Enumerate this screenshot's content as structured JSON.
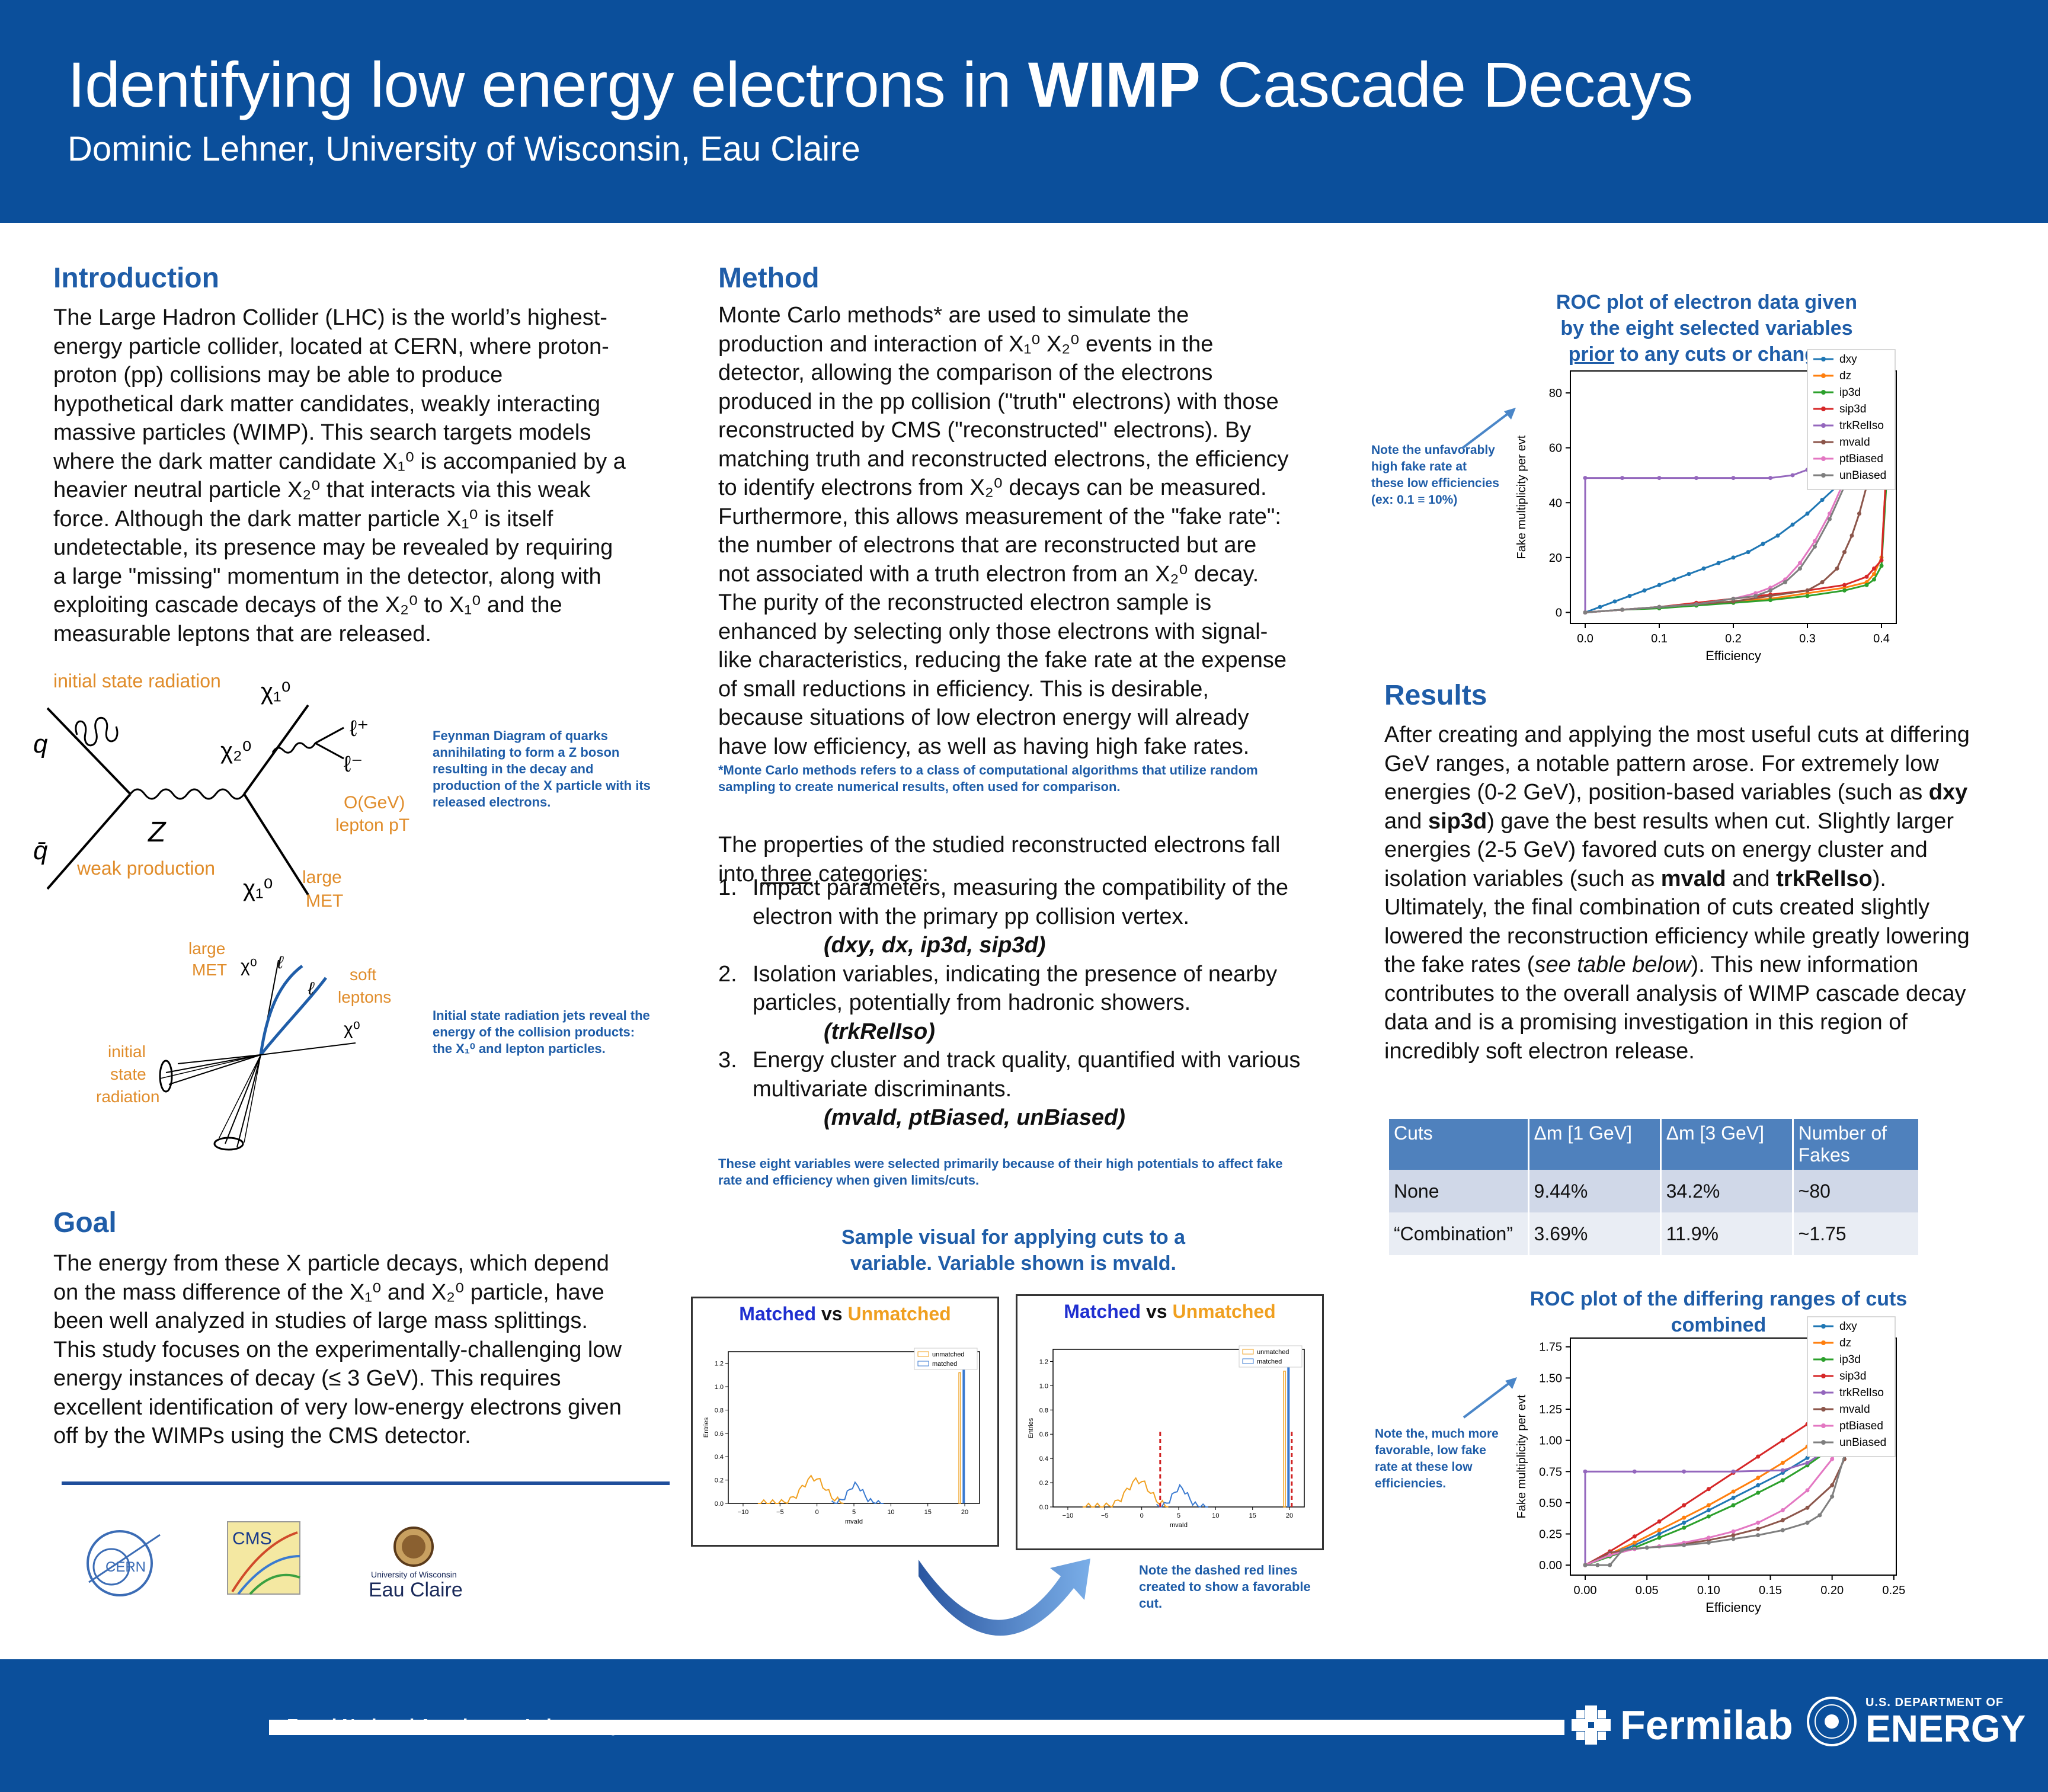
{
  "header": {
    "title_prefix": "Identifying low energy electrons in ",
    "title_bold": "WIMP",
    "title_suffix": " Cascade Decays",
    "author": "Dominic Lehner, University of Wisconsin, Eau Claire",
    "bg_color": "#0b4f9b"
  },
  "introduction": {
    "heading": "Introduction",
    "lines": [
      "The Large Hadron Collider (LHC) is the world’s highest-",
      "energy particle collider, located at CERN, where proton-",
      "proton (pp) collisions may be able to produce",
      "hypothetical dark matter candidates, weakly interacting",
      "massive particles (WIMP). This search targets models",
      "where the dark matter candidate X₁⁰ is accompanied by a",
      "heavier neutral particle X₂⁰ that interacts via this weak",
      "force. Although the dark matter particle X₁⁰ is itself",
      "undetectable, its presence may be revealed by requiring",
      "a large \"missing\" momentum in the detector, along with",
      "exploiting cascade decays of the X₂⁰ to X₁⁰ and the",
      "measurable leptons that are released."
    ]
  },
  "feynman": {
    "isr_label": "initial state radiation",
    "q": "q",
    "qbar": "q̄",
    "chi1_top": "χ₁⁰",
    "chi2": "χ₂⁰",
    "lplus": "ℓ⁺",
    "lminus": "ℓ⁻",
    "z": "Z",
    "ogev": "O(GeV)",
    "lepton_pt": "lepton pT",
    "weak_production": "weak production",
    "chi1_bottom": "χ₁⁰",
    "large_met": "large",
    "met": "MET",
    "caption": "Feynman Diagram of quarks annihilating to form a Z boson resulting in the decay and production of the X particle with its released electrons."
  },
  "isr_diagram": {
    "large": "large",
    "met": "MET",
    "chi0_a": "χ⁰",
    "ell_a": "ℓ",
    "ell_b": "ℓ",
    "soft": "soft",
    "leptons": "leptons",
    "chi0_b": "χ⁰",
    "initial": "initial",
    "state": "state",
    "radiation": "radiation",
    "caption": "Initial state radiation jets reveal the energy of the collision products: the X₁⁰ and lepton particles."
  },
  "goal": {
    "heading": "Goal",
    "lines": [
      "The energy from these X particle decays, which depend",
      "on the mass difference of the X₁⁰ and X₂⁰ particle, have",
      "been well analyzed in studies of large mass splittings.",
      "This study focuses on the experimentally-challenging low",
      "energy instances of decay (≤ 3 GeV). This requires",
      "excellent identification of very low-energy electrons given",
      "off by the WIMPs using the CMS detector."
    ]
  },
  "logos": {
    "cern": "CERN",
    "cms": "CMS",
    "uw_small": "University of Wisconsin",
    "uw_big": "Eau Claire"
  },
  "method": {
    "heading": "Method",
    "lines": [
      "Monte Carlo methods* are used to simulate the",
      "production and interaction of X₁⁰ X₂⁰ events in the",
      "detector, allowing the comparison of the electrons",
      "produced in the pp collision (\"truth\" electrons) with those",
      "reconstructed by CMS (\"reconstructed\" electrons). By",
      "matching truth and reconstructed electrons, the efficiency",
      "to identify electrons from X₂⁰ decays can be measured.",
      "Furthermore, this allows measurement of the \"fake rate\":",
      "the number of electrons that are reconstructed but are",
      "not associated with a truth electron from an X₂⁰ decay.",
      "The purity of the reconstructed electron sample is",
      "enhanced by selecting only those electrons with signal-",
      "like characteristics, reducing the fake rate at the expense",
      "of small reductions in efficiency. This is desirable,",
      "because situations of low electron energy will already",
      "have low efficiency, as well as having high fake rates."
    ],
    "footnote": "*Monte Carlo methods refers to a class of computational algorithms that utilize random sampling to create numerical results, often used for comparison.",
    "props_intro_a": "The properties of the studied reconstructed electrons fall",
    "props_intro_b": "into ",
    "props_intro_u": "three",
    "props_intro_c": " categories:",
    "categories": [
      {
        "num": "1.",
        "text": "Impact parameters, measuring the compatibility of the electron with the primary pp collision vertex.",
        "vars": "(dxy, dx, ip3d, sip3d)"
      },
      {
        "num": "2.",
        "text": "Isolation variables, indicating the presence of nearby particles, potentially from hadronic showers.",
        "vars": "(trkRelIso)"
      },
      {
        "num": "3.",
        "text": "Energy cluster and track quality, quantified with various multivariate discriminants.",
        "vars": "(mvaId, ptBiased, unBiased)"
      }
    ],
    "eight_note": "These eight variables were selected primarily because of their high potentials to affect fake rate and efficiency when given limits/cuts.",
    "sample_caption": "Sample visual for applying cuts to a variable. Variable shown is mvaId.",
    "dashed_note": "Note the dashed red lines created to show a favorable cut."
  },
  "hist": {
    "title_matched": "Matched",
    "title_vs": " vs ",
    "title_unmatched": "Unmatched",
    "legend_unmatched": "unmatched",
    "legend_matched": "matched",
    "ylabel": "Entries",
    "xlabel": "mvaId",
    "yticks": [
      "0.0",
      "0.2",
      "0.4",
      "0.6",
      "0.8",
      "1.0",
      "1.2"
    ],
    "xticks": [
      "−10",
      "−5",
      "0",
      "5",
      "10",
      "15",
      "20"
    ]
  },
  "roc1": {
    "caption_a": "ROC plot of electron data given",
    "caption_b": "by the eight selected variables",
    "caption_u": "prior",
    "caption_c": " to any cuts or changes.",
    "note": "Note the unfavorably high fake rate at these low efficiencies (ex: 0.1 ≡ 10%)"
  },
  "roc2": {
    "caption": "ROC plot of the differing ranges of cuts combined",
    "note": "Note the, much more favorable, low fake rate at these low efficiencies."
  },
  "results": {
    "heading": "Results",
    "text_html_parts": [
      {
        "t": "After creating and applying the most useful cuts at differing GeV ranges, a notable pattern arose. For extremely low energies (0-2 GeV), position-based variables (such as ",
        "b": false,
        "i": false
      },
      {
        "t": "dxy",
        "b": true,
        "i": false
      },
      {
        "t": " and ",
        "b": false,
        "i": false
      },
      {
        "t": "sip3d",
        "b": true,
        "i": false
      },
      {
        "t": ") gave the best results when cut. Slightly larger energies (2-5 GeV) favored cuts on energy cluster and isolation variables (such as ",
        "b": false,
        "i": false
      },
      {
        "t": "mvaId",
        "b": true,
        "i": false
      },
      {
        "t": " and ",
        "b": false,
        "i": false
      },
      {
        "t": "trkRelIso",
        "b": true,
        "i": false
      },
      {
        "t": "). Ultimately, the final combination of cuts created slightly lowered the reconstruction efficiency while greatly lowering the fake rates (",
        "b": false,
        "i": false
      },
      {
        "t": "see table below",
        "b": false,
        "i": true
      },
      {
        "t": "). This new information contributes to the overall analysis of WIMP cascade decay data and is a promising investigation in this region of incredibly soft electron release.",
        "b": false,
        "i": false
      }
    ],
    "table": {
      "headers": [
        "Cuts",
        "Δm [1 GeV]",
        "Δm [3 GeV]",
        "Number of Fakes"
      ],
      "rows": [
        [
          "None",
          "9.44%",
          "34.2%",
          "~80"
        ],
        [
          "“Combination”",
          "3.69%",
          "11.9%",
          "~1.75"
        ]
      ]
    }
  },
  "footer": {
    "lab": "Fermi National Accelerator Laboratory",
    "fermilab": "Fermilab",
    "doe_top": "U.S. DEPARTMENT OF",
    "doe_main": "ENERGY"
  },
  "chart_data": [
    {
      "type": "line",
      "title": "",
      "xlabel": "Efficiency",
      "ylabel": "Fake multiplicity per evt",
      "xlim": [
        -0.02,
        0.42
      ],
      "ylim": [
        -4,
        88
      ],
      "xticks": [
        0.0,
        0.1,
        0.2,
        0.3,
        0.4
      ],
      "yticks": [
        0,
        20,
        40,
        60,
        80
      ],
      "legend_position": "top-right",
      "series": [
        {
          "name": "dxy",
          "color": "#1f77b4",
          "x": [
            0.0,
            0.02,
            0.04,
            0.06,
            0.08,
            0.1,
            0.12,
            0.14,
            0.16,
            0.18,
            0.2,
            0.22,
            0.24,
            0.26,
            0.28,
            0.3,
            0.32,
            0.34,
            0.36,
            0.38,
            0.39,
            0.4
          ],
          "y": [
            0,
            2,
            4,
            6,
            8,
            10,
            12,
            14,
            16,
            18,
            20,
            22,
            25,
            28,
            32,
            36,
            41,
            46,
            52,
            58,
            62,
            66
          ]
        },
        {
          "name": "dz",
          "color": "#ff7f0e",
          "x": [
            0.0,
            0.05,
            0.1,
            0.15,
            0.2,
            0.25,
            0.3,
            0.35,
            0.38,
            0.39,
            0.4,
            0.41
          ],
          "y": [
            0,
            1,
            2,
            3,
            4,
            5,
            7,
            9,
            11,
            14,
            20,
            68
          ]
        },
        {
          "name": "ip3d",
          "color": "#2ca02c",
          "x": [
            0.0,
            0.05,
            0.1,
            0.15,
            0.2,
            0.25,
            0.3,
            0.35,
            0.38,
            0.39,
            0.4,
            0.41
          ],
          "y": [
            0,
            1,
            1.5,
            2.5,
            3.5,
            4.5,
            6,
            8,
            10,
            12,
            17,
            62
          ]
        },
        {
          "name": "sip3d",
          "color": "#d62728",
          "x": [
            0.0,
            0.05,
            0.1,
            0.15,
            0.2,
            0.25,
            0.3,
            0.35,
            0.38,
            0.39,
            0.4,
            0.41
          ],
          "y": [
            0,
            1,
            2,
            3.5,
            5,
            6.5,
            8,
            10,
            13,
            16,
            19,
            70
          ]
        },
        {
          "name": "trkRelIso",
          "color": "#9467bd",
          "x": [
            0.0,
            0.0,
            0.05,
            0.1,
            0.15,
            0.2,
            0.25,
            0.28,
            0.3,
            0.32,
            0.34,
            0.36,
            0.38,
            0.4
          ],
          "y": [
            0,
            49,
            49,
            49,
            49,
            49,
            49,
            50,
            52,
            55,
            59,
            64,
            68,
            72
          ]
        },
        {
          "name": "mvaId",
          "color": "#8c564b",
          "x": [
            0.0,
            0.05,
            0.1,
            0.15,
            0.2,
            0.25,
            0.3,
            0.32,
            0.34,
            0.35,
            0.36,
            0.37,
            0.38,
            0.39
          ],
          "y": [
            0,
            1,
            2,
            3,
            4,
            6,
            8,
            11,
            16,
            22,
            28,
            36,
            46,
            62
          ]
        },
        {
          "name": "ptBiased",
          "color": "#e377c2",
          "x": [
            0.0,
            0.05,
            0.1,
            0.15,
            0.2,
            0.23,
            0.25,
            0.27,
            0.29,
            0.31,
            0.33,
            0.35,
            0.37,
            0.38
          ],
          "y": [
            0,
            1,
            2,
            3,
            5,
            7,
            9,
            12,
            18,
            26,
            36,
            48,
            62,
            70
          ]
        },
        {
          "name": "unBiased",
          "color": "#7f7f7f",
          "x": [
            0.0,
            0.05,
            0.1,
            0.15,
            0.2,
            0.23,
            0.25,
            0.27,
            0.29,
            0.31,
            0.33,
            0.35,
            0.37,
            0.38
          ],
          "y": [
            0,
            1,
            2,
            3,
            5,
            6,
            8,
            11,
            16,
            24,
            34,
            46,
            60,
            68
          ]
        }
      ]
    },
    {
      "type": "line",
      "title": "",
      "xlabel": "Efficiency",
      "ylabel": "Fake multiplicity per evt",
      "xlim": [
        -0.012,
        0.252
      ],
      "ylim": [
        -0.08,
        1.82
      ],
      "xticks": [
        0.0,
        0.05,
        0.1,
        0.15,
        0.2,
        0.25
      ],
      "yticks": [
        0.0,
        0.25,
        0.5,
        0.75,
        1.0,
        1.25,
        1.5,
        1.75
      ],
      "legend_position": "top-right",
      "series": [
        {
          "name": "dxy",
          "color": "#1f77b4",
          "x": [
            0.0,
            0.02,
            0.04,
            0.06,
            0.08,
            0.1,
            0.12,
            0.14,
            0.16,
            0.18,
            0.2,
            0.22
          ],
          "y": [
            0,
            0.08,
            0.16,
            0.25,
            0.34,
            0.44,
            0.54,
            0.64,
            0.74,
            0.86,
            1.0,
            1.2
          ]
        },
        {
          "name": "dz",
          "color": "#ff7f0e",
          "x": [
            0.0,
            0.02,
            0.04,
            0.06,
            0.08,
            0.1,
            0.12,
            0.14,
            0.16,
            0.18,
            0.2,
            0.22
          ],
          "y": [
            0,
            0.09,
            0.18,
            0.28,
            0.38,
            0.48,
            0.59,
            0.7,
            0.82,
            0.95,
            1.1,
            1.3
          ]
        },
        {
          "name": "ip3d",
          "color": "#2ca02c",
          "x": [
            0.0,
            0.02,
            0.04,
            0.06,
            0.08,
            0.1,
            0.12,
            0.14,
            0.16,
            0.18,
            0.2,
            0.22
          ],
          "y": [
            0,
            0.07,
            0.14,
            0.22,
            0.3,
            0.39,
            0.48,
            0.58,
            0.68,
            0.8,
            0.94,
            1.15
          ]
        },
        {
          "name": "sip3d",
          "color": "#d62728",
          "x": [
            0.0,
            0.02,
            0.04,
            0.06,
            0.08,
            0.1,
            0.12,
            0.14,
            0.16,
            0.18,
            0.2,
            0.22
          ],
          "y": [
            0,
            0.11,
            0.23,
            0.35,
            0.48,
            0.61,
            0.74,
            0.87,
            1.0,
            1.13,
            1.27,
            1.42
          ]
        },
        {
          "name": "trkRelIso",
          "color": "#9467bd",
          "x": [
            0.0,
            0.0,
            0.04,
            0.08,
            0.12,
            0.16,
            0.18,
            0.2,
            0.22
          ],
          "y": [
            0,
            0.75,
            0.75,
            0.75,
            0.75,
            0.76,
            0.82,
            0.95,
            1.2
          ]
        },
        {
          "name": "mvaId",
          "color": "#8c564b",
          "x": [
            0.0,
            0.02,
            0.04,
            0.06,
            0.08,
            0.1,
            0.12,
            0.14,
            0.16,
            0.18,
            0.2,
            0.21,
            0.22
          ],
          "y": [
            0,
            0.1,
            0.13,
            0.15,
            0.17,
            0.2,
            0.24,
            0.29,
            0.36,
            0.46,
            0.64,
            0.85,
            1.2
          ]
        },
        {
          "name": "ptBiased",
          "color": "#e377c2",
          "x": [
            0.0,
            0.02,
            0.04,
            0.06,
            0.08,
            0.1,
            0.12,
            0.14,
            0.16,
            0.18,
            0.2,
            0.22
          ],
          "y": [
            0,
            0.08,
            0.13,
            0.15,
            0.18,
            0.22,
            0.27,
            0.34,
            0.44,
            0.6,
            0.85,
            1.25
          ]
        },
        {
          "name": "unBiased",
          "color": "#7f7f7f",
          "x": [
            0.0,
            0.01,
            0.02,
            0.03,
            0.05,
            0.08,
            0.1,
            0.12,
            0.14,
            0.16,
            0.18,
            0.19,
            0.2,
            0.22
          ],
          "y": [
            0,
            0,
            0,
            0.12,
            0.14,
            0.16,
            0.18,
            0.21,
            0.24,
            0.28,
            0.34,
            0.4,
            0.55,
            1.2
          ]
        }
      ]
    }
  ]
}
